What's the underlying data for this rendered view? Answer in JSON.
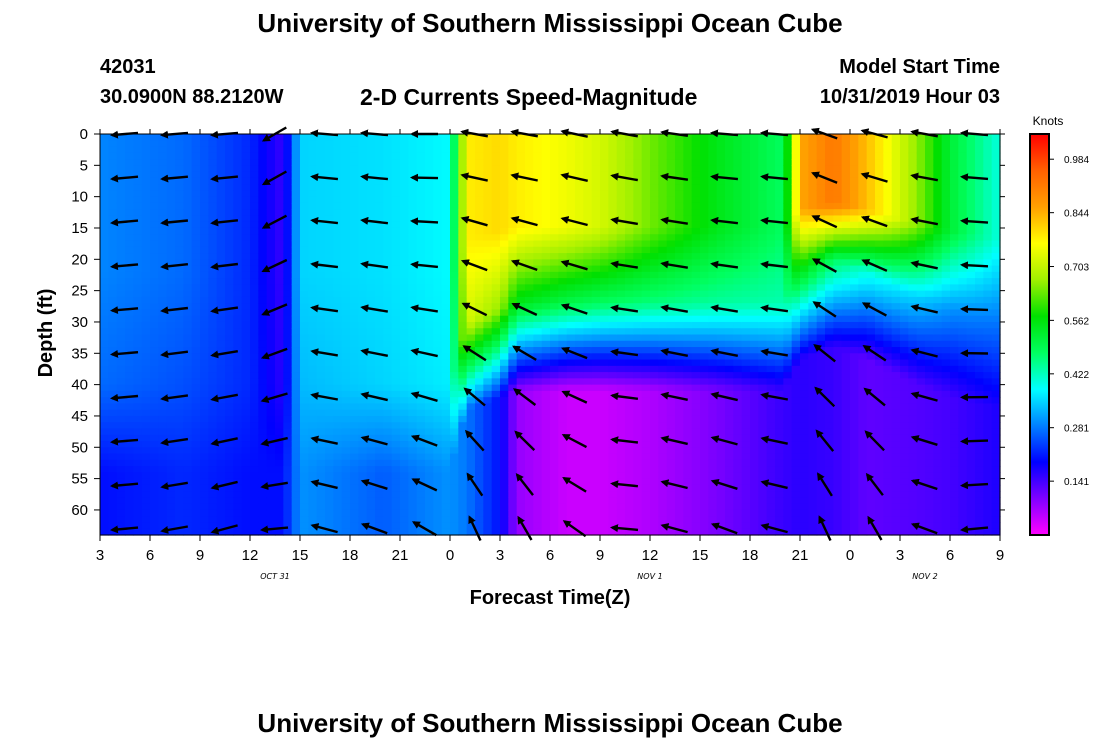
{
  "header": {
    "title": "University of Southern Mississippi Ocean Cube",
    "station_id": "42031",
    "coordinates": "30.0900N 88.2120W",
    "subtitle": "2-D Currents Speed-Magnitude",
    "model_start_label": "Model Start Time",
    "model_start_time": "10/31/2019 Hour 03"
  },
  "footer": {
    "title": "University of Southern Mississippi Ocean Cube"
  },
  "colors": {
    "colormap": [
      "#ff00ff",
      "#8000ff",
      "#0000ff",
      "#0080ff",
      "#00ffff",
      "#00ff60",
      "#00e000",
      "#a0f000",
      "#ffff00",
      "#ffa000",
      "#ff6000",
      "#ff0000"
    ],
    "arrow": "#000000"
  },
  "chart_data": {
    "type": "heatmap",
    "xlabel": "Forecast Time(Z)",
    "ylabel": "Depth (ft)",
    "xlim": [
      3,
      57
    ],
    "ylim": [
      64,
      0
    ],
    "x_ticks": [
      3,
      6,
      9,
      12,
      15,
      18,
      21,
      24,
      27,
      30,
      33,
      36,
      39,
      42,
      45,
      48,
      51,
      54,
      57
    ],
    "x_tick_labels": [
      "3",
      "6",
      "9",
      "12",
      "15",
      "18",
      "21",
      "0",
      "3",
      "6",
      "9",
      "12",
      "15",
      "18",
      "21",
      "0",
      "3",
      "6",
      "9"
    ],
    "date_labels": [
      {
        "x": 13.5,
        "label": "OCT 31"
      },
      {
        "x": 36,
        "label": "NOV 1"
      },
      {
        "x": 52.5,
        "label": "NOV 2"
      }
    ],
    "y_ticks": [
      0,
      5,
      10,
      15,
      20,
      25,
      30,
      35,
      40,
      45,
      50,
      55,
      60
    ],
    "colorbar": {
      "label": "Knots",
      "range": [
        0.0,
        1.05
      ],
      "ticks": [
        0.984,
        0.844,
        0.703,
        0.562,
        0.422,
        0.281,
        0.141
      ]
    },
    "speed_model": {
      "description": "approximate speed field (knots) by forecast hour and depth",
      "time_points": [
        3,
        8,
        12,
        14,
        15,
        20,
        24,
        25,
        27,
        28,
        31,
        33,
        36,
        40,
        44,
        45,
        47,
        49,
        52,
        54,
        57
      ],
      "surface_speed": [
        0.29,
        0.27,
        0.22,
        0.15,
        0.35,
        0.36,
        0.38,
        0.78,
        0.8,
        0.78,
        0.75,
        0.72,
        0.64,
        0.55,
        0.48,
        0.85,
        0.92,
        0.83,
        0.66,
        0.52,
        0.4
      ],
      "mid_speed": [
        0.27,
        0.25,
        0.22,
        0.16,
        0.33,
        0.35,
        0.37,
        0.72,
        0.66,
        0.55,
        0.5,
        0.48,
        0.46,
        0.44,
        0.43,
        0.55,
        0.48,
        0.4,
        0.35,
        0.3,
        0.28
      ],
      "deep_speed": [
        0.2,
        0.22,
        0.2,
        0.2,
        0.3,
        0.26,
        0.3,
        0.28,
        0.2,
        0.08,
        0.04,
        0.04,
        0.06,
        0.1,
        0.15,
        0.16,
        0.15,
        0.12,
        0.13,
        0.14,
        0.17
      ],
      "transition_depth": [
        40,
        40,
        40,
        40,
        40,
        40,
        40,
        30,
        28,
        27,
        27,
        27,
        27,
        27,
        27,
        22,
        20,
        22,
        26,
        28,
        30
      ]
    },
    "vectors": {
      "description": "current direction arrows, angle in degrees (0=east, 90=north)",
      "times": [
        4.5,
        7.5,
        10.5,
        13.5,
        16.5,
        19.5,
        22.5,
        25.5,
        28.5,
        31.5,
        34.5,
        37.5,
        40.5,
        43.5,
        46.5,
        49.5,
        52.5,
        55.5
      ],
      "depths": [
        0,
        7,
        14,
        21,
        28,
        35,
        42,
        49,
        56,
        63
      ],
      "shallow_angle": [
        185,
        185,
        185,
        210,
        175,
        175,
        180,
        170,
        170,
        168,
        170,
        172,
        175,
        175,
        160,
        165,
        170,
        175
      ],
      "deep_angle": [
        185,
        190,
        195,
        185,
        165,
        160,
        150,
        115,
        120,
        145,
        175,
        165,
        160,
        165,
        115,
        120,
        160,
        185
      ]
    }
  }
}
